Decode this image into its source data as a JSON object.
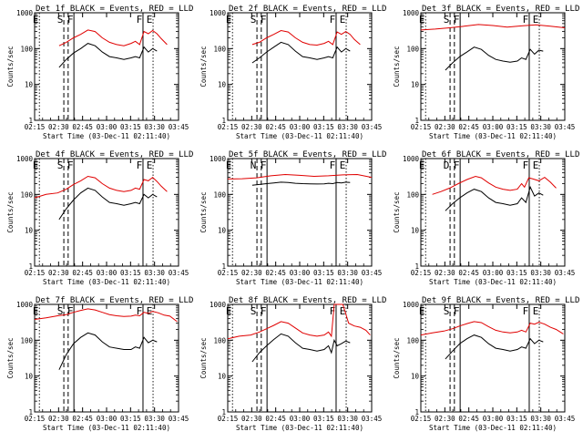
{
  "chart_data": {
    "type": "line",
    "layout": "3x3 grid",
    "y_scale": "log",
    "ylim": [
      1,
      1000
    ],
    "y_ticks": [
      "1",
      "10",
      "100",
      "1000"
    ],
    "x_range_minutes": [
      0,
      100
    ],
    "x_tick_labels": [
      "02:15",
      "02:30",
      "02:45",
      "03:00",
      "03:15",
      "03:30",
      "03:45"
    ],
    "xlabel": "Start Time (03-Dec-11 02:11:40)",
    "ylabel": "Counts/sec",
    "colors": {
      "events": "#000000",
      "lld": "#e00000"
    },
    "panels": [
      {
        "title": "Det 1f BLACK = Events, RED = LLD",
        "markers": [
          {
            "x": 3.3,
            "label": "E"
          },
          {
            "x": 20.3,
            "label": "S"
          },
          {
            "x": 27.3,
            "label": "F"
          },
          {
            "x": 75.3,
            "label": "F"
          },
          {
            "x": 82.3,
            "label": "E"
          }
        ],
        "series": [
          {
            "name": "RED = LLD",
            "x": [
              17,
              22,
              27,
              32,
              37,
              42,
              47,
              52,
              57,
              62,
              67,
              70,
              73,
              76,
              79,
              82,
              85,
              88,
              92
            ],
            "y": [
              120,
              150,
              200,
              250,
              330,
              300,
              200,
              150,
              130,
              120,
              140,
              160,
              130,
              300,
              260,
              320,
              260,
              190,
              130
            ]
          },
          {
            "name": "BLACK = Events",
            "x": [
              17,
              22,
              27,
              32,
              37,
              42,
              47,
              52,
              57,
              62,
              67,
              70,
              73,
              76,
              79,
              82,
              85
            ],
            "y": [
              30,
              50,
              75,
              100,
              140,
              120,
              80,
              60,
              55,
              50,
              55,
              60,
              55,
              110,
              80,
              100,
              85
            ]
          }
        ]
      },
      {
        "title": "Det 2f BLACK = Events, RED = LLD",
        "markers": [
          {
            "x": 3.3,
            "label": "E"
          },
          {
            "x": 20.3,
            "label": "S"
          },
          {
            "x": 27.3,
            "label": "F"
          },
          {
            "x": 75.3,
            "label": "F"
          },
          {
            "x": 82.3,
            "label": "E"
          }
        ],
        "series": [
          {
            "name": "RED = LLD",
            "x": [
              17,
              22,
              27,
              32,
              37,
              42,
              47,
              52,
              57,
              62,
              67,
              70,
              73,
              76,
              79,
              82,
              85,
              88,
              92
            ],
            "y": [
              130,
              150,
              200,
              250,
              320,
              290,
              200,
              150,
              130,
              125,
              140,
              160,
              130,
              290,
              250,
              300,
              250,
              180,
              130
            ]
          },
          {
            "name": "BLACK = Events",
            "x": [
              17,
              22,
              27,
              32,
              37,
              42,
              47,
              52,
              57,
              62,
              67,
              70,
              73,
              76,
              79,
              82,
              85
            ],
            "y": [
              40,
              55,
              80,
              110,
              150,
              130,
              85,
              60,
              55,
              50,
              55,
              60,
              55,
              110,
              80,
              100,
              85
            ]
          }
        ]
      },
      {
        "title": "Det 3f BLACK = Events, RED = LLD",
        "markers": [
          {
            "x": 3.3,
            "label": "E"
          },
          {
            "x": 20.3,
            "label": "S"
          },
          {
            "x": 27.3,
            "label": "F"
          },
          {
            "x": 75.3,
            "label": "F"
          },
          {
            "x": 82.3,
            "label": "E"
          }
        ],
        "series": [
          {
            "name": "RED = LLD",
            "x": [
              0,
              10,
              20,
              30,
              40,
              50,
              60,
              70,
              80,
              90,
              100
            ],
            "y": [
              330,
              350,
              380,
              420,
              470,
              440,
              400,
              430,
              460,
              420,
              380
            ]
          },
          {
            "name": "BLACK = Events",
            "x": [
              17,
              22,
              27,
              32,
              37,
              42,
              47,
              52,
              57,
              62,
              67,
              70,
              73,
              76,
              79,
              82,
              85
            ],
            "y": [
              25,
              40,
              60,
              80,
              110,
              95,
              65,
              50,
              45,
              42,
              45,
              55,
              50,
              95,
              70,
              90,
              85
            ]
          }
        ]
      },
      {
        "title": "Det 4f BLACK = Events, RED = LLD",
        "markers": [
          {
            "x": 3.3,
            "label": "E"
          },
          {
            "x": 20.3,
            "label": "S"
          },
          {
            "x": 27.3,
            "label": "F"
          },
          {
            "x": 75.3,
            "label": "F"
          },
          {
            "x": 82.3,
            "label": "E"
          }
        ],
        "series": [
          {
            "name": "RED = LLD",
            "x": [
              0,
              8,
              16,
              22,
              27,
              32,
              37,
              42,
              47,
              52,
              57,
              62,
              67,
              70,
              73,
              76,
              79,
              82,
              85,
              88,
              92
            ],
            "y": [
              80,
              100,
              110,
              140,
              190,
              240,
              320,
              290,
              200,
              150,
              130,
              120,
              130,
              150,
              140,
              260,
              240,
              300,
              230,
              170,
              120
            ]
          },
          {
            "name": "BLACK = Events",
            "x": [
              17,
              22,
              27,
              32,
              37,
              42,
              47,
              52,
              57,
              62,
              67,
              70,
              73,
              76,
              79,
              82,
              85
            ],
            "y": [
              20,
              40,
              70,
              110,
              150,
              130,
              85,
              60,
              55,
              50,
              55,
              60,
              55,
              100,
              80,
              100,
              85
            ]
          }
        ]
      },
      {
        "title": "Det 5f BLACK = Events, RED = LLD",
        "markers": [
          {
            "x": 3.3,
            "label": "E"
          },
          {
            "x": 20.3,
            "label": "N"
          },
          {
            "x": 27.3,
            "label": "F"
          },
          {
            "x": 75.3,
            "label": "F"
          },
          {
            "x": 82.3,
            "label": "E"
          }
        ],
        "series": [
          {
            "name": "RED = LLD",
            "x": [
              0,
              10,
              20,
              30,
              40,
              50,
              60,
              70,
              80,
              90,
              100
            ],
            "y": [
              270,
              275,
              290,
              330,
              360,
              340,
              320,
              330,
              350,
              360,
              300
            ]
          },
          {
            "name": "BLACK = Events",
            "x": [
              17,
              22,
              27,
              32,
              37,
              42,
              47,
              52,
              57,
              62,
              67,
              70,
              73,
              76,
              79,
              82,
              85
            ],
            "y": [
              180,
              190,
              200,
              210,
              220,
              215,
              205,
              200,
              198,
              195,
              198,
              205,
              200,
              215,
              210,
              220,
              215
            ]
          }
        ]
      },
      {
        "title": "Det 6f BLACK = Events, RED = LLD",
        "markers": [
          {
            "x": 3.3,
            "label": "E"
          },
          {
            "x": 20.3,
            "label": "D"
          },
          {
            "x": 27.3,
            "label": "F"
          },
          {
            "x": 75.3,
            "label": "F"
          },
          {
            "x": 82.3,
            "label": "E"
          }
        ],
        "series": [
          {
            "name": "RED = LLD",
            "x": [
              8,
              14,
              20,
              26,
              32,
              38,
              42,
              47,
              52,
              57,
              62,
              67,
              70,
              72,
              75,
              78,
              82,
              86,
              90,
              94
            ],
            "y": [
              100,
              120,
              150,
              200,
              260,
              320,
              290,
              210,
              160,
              140,
              130,
              140,
              200,
              160,
              290,
              270,
              240,
              300,
              220,
              150
            ]
          },
          {
            "name": "BLACK = Events",
            "x": [
              17,
              22,
              27,
              32,
              37,
              42,
              47,
              52,
              57,
              62,
              67,
              70,
              73,
              76,
              79,
              82,
              85
            ],
            "y": [
              35,
              55,
              80,
              110,
              140,
              120,
              80,
              60,
              55,
              50,
              55,
              80,
              60,
              160,
              90,
              110,
              95
            ]
          }
        ]
      },
      {
        "title": "Det 7f BLACK = Events, RED = LLD",
        "markers": [
          {
            "x": 3.3,
            "label": "E"
          },
          {
            "x": 20.3,
            "label": "S"
          },
          {
            "x": 27.3,
            "label": "F"
          },
          {
            "x": 75.3,
            "label": "F"
          },
          {
            "x": 82.3,
            "label": "E"
          }
        ],
        "series": [
          {
            "name": "RED = LLD",
            "x": [
              0,
              8,
              16,
              22,
              27,
              32,
              37,
              42,
              47,
              52,
              57,
              62,
              67,
              70,
              73,
              76,
              79,
              82,
              86,
              90,
              94,
              99
            ],
            "y": [
              380,
              420,
              480,
              520,
              600,
              680,
              750,
              700,
              600,
              520,
              480,
              460,
              470,
              500,
              480,
              600,
              560,
              640,
              580,
              500,
              470,
              330
            ]
          },
          {
            "name": "BLACK = Events",
            "x": [
              17,
              22,
              27,
              32,
              37,
              42,
              47,
              52,
              57,
              62,
              67,
              70,
              73,
              76,
              79,
              82,
              85
            ],
            "y": [
              15,
              40,
              80,
              120,
              160,
              140,
              90,
              65,
              60,
              55,
              55,
              65,
              60,
              120,
              85,
              100,
              90
            ]
          }
        ]
      },
      {
        "title": "Det 8f BLACK = Events, RED = LLD",
        "markers": [
          {
            "x": 3.3,
            "label": "E"
          },
          {
            "x": 20.3,
            "label": "S"
          },
          {
            "x": 27.3,
            "label": "F"
          },
          {
            "x": 75.3,
            "label": "F"
          },
          {
            "x": 82.3,
            "label": "E"
          }
        ],
        "series": [
          {
            "name": "RED = LLD",
            "x": [
              0,
              8,
              16,
              22,
              27,
              32,
              37,
              42,
              47,
              52,
              57,
              62,
              67,
              70,
              72,
              74,
              76,
              80,
              84,
              88,
              92,
              96,
              99
            ],
            "y": [
              110,
              130,
              140,
              170,
              210,
              260,
              330,
              300,
              220,
              160,
              140,
              130,
              140,
              170,
              130,
              1000,
              1000,
              1000,
              300,
              250,
              230,
              190,
              140
            ]
          },
          {
            "name": "BLACK = Events",
            "x": [
              17,
              22,
              27,
              32,
              37,
              42,
              47,
              52,
              57,
              62,
              67,
              70,
              72,
              74,
              76,
              79,
              82,
              85
            ],
            "y": [
              25,
              45,
              70,
              105,
              150,
              130,
              85,
              60,
              55,
              50,
              55,
              70,
              45,
              100,
              70,
              80,
              95,
              85
            ]
          }
        ]
      },
      {
        "title": "Det 9f BLACK = Events, RED = LLD",
        "markers": [
          {
            "x": 3.3,
            "label": "E"
          },
          {
            "x": 20.3,
            "label": "S"
          },
          {
            "x": 27.3,
            "label": "F"
          },
          {
            "x": 75.3,
            "label": "F"
          },
          {
            "x": 82.3,
            "label": "E"
          }
        ],
        "series": [
          {
            "name": "RED = LLD",
            "x": [
              0,
              8,
              16,
              22,
              27,
              32,
              37,
              42,
              47,
              52,
              57,
              62,
              67,
              70,
              73,
              76,
              79,
              82,
              86,
              90,
              94,
              99
            ],
            "y": [
              140,
              160,
              180,
              210,
              250,
              290,
              330,
              310,
              240,
              190,
              170,
              160,
              170,
              190,
              170,
              300,
              280,
              320,
              280,
              230,
              200,
              150
            ]
          },
          {
            "name": "BLACK = Events",
            "x": [
              17,
              22,
              27,
              32,
              37,
              42,
              47,
              52,
              57,
              62,
              67,
              70,
              73,
              76,
              79,
              82,
              85
            ],
            "y": [
              30,
              50,
              80,
              110,
              140,
              120,
              80,
              60,
              55,
              50,
              55,
              65,
              60,
              110,
              80,
              100,
              90
            ]
          }
        ]
      }
    ]
  }
}
